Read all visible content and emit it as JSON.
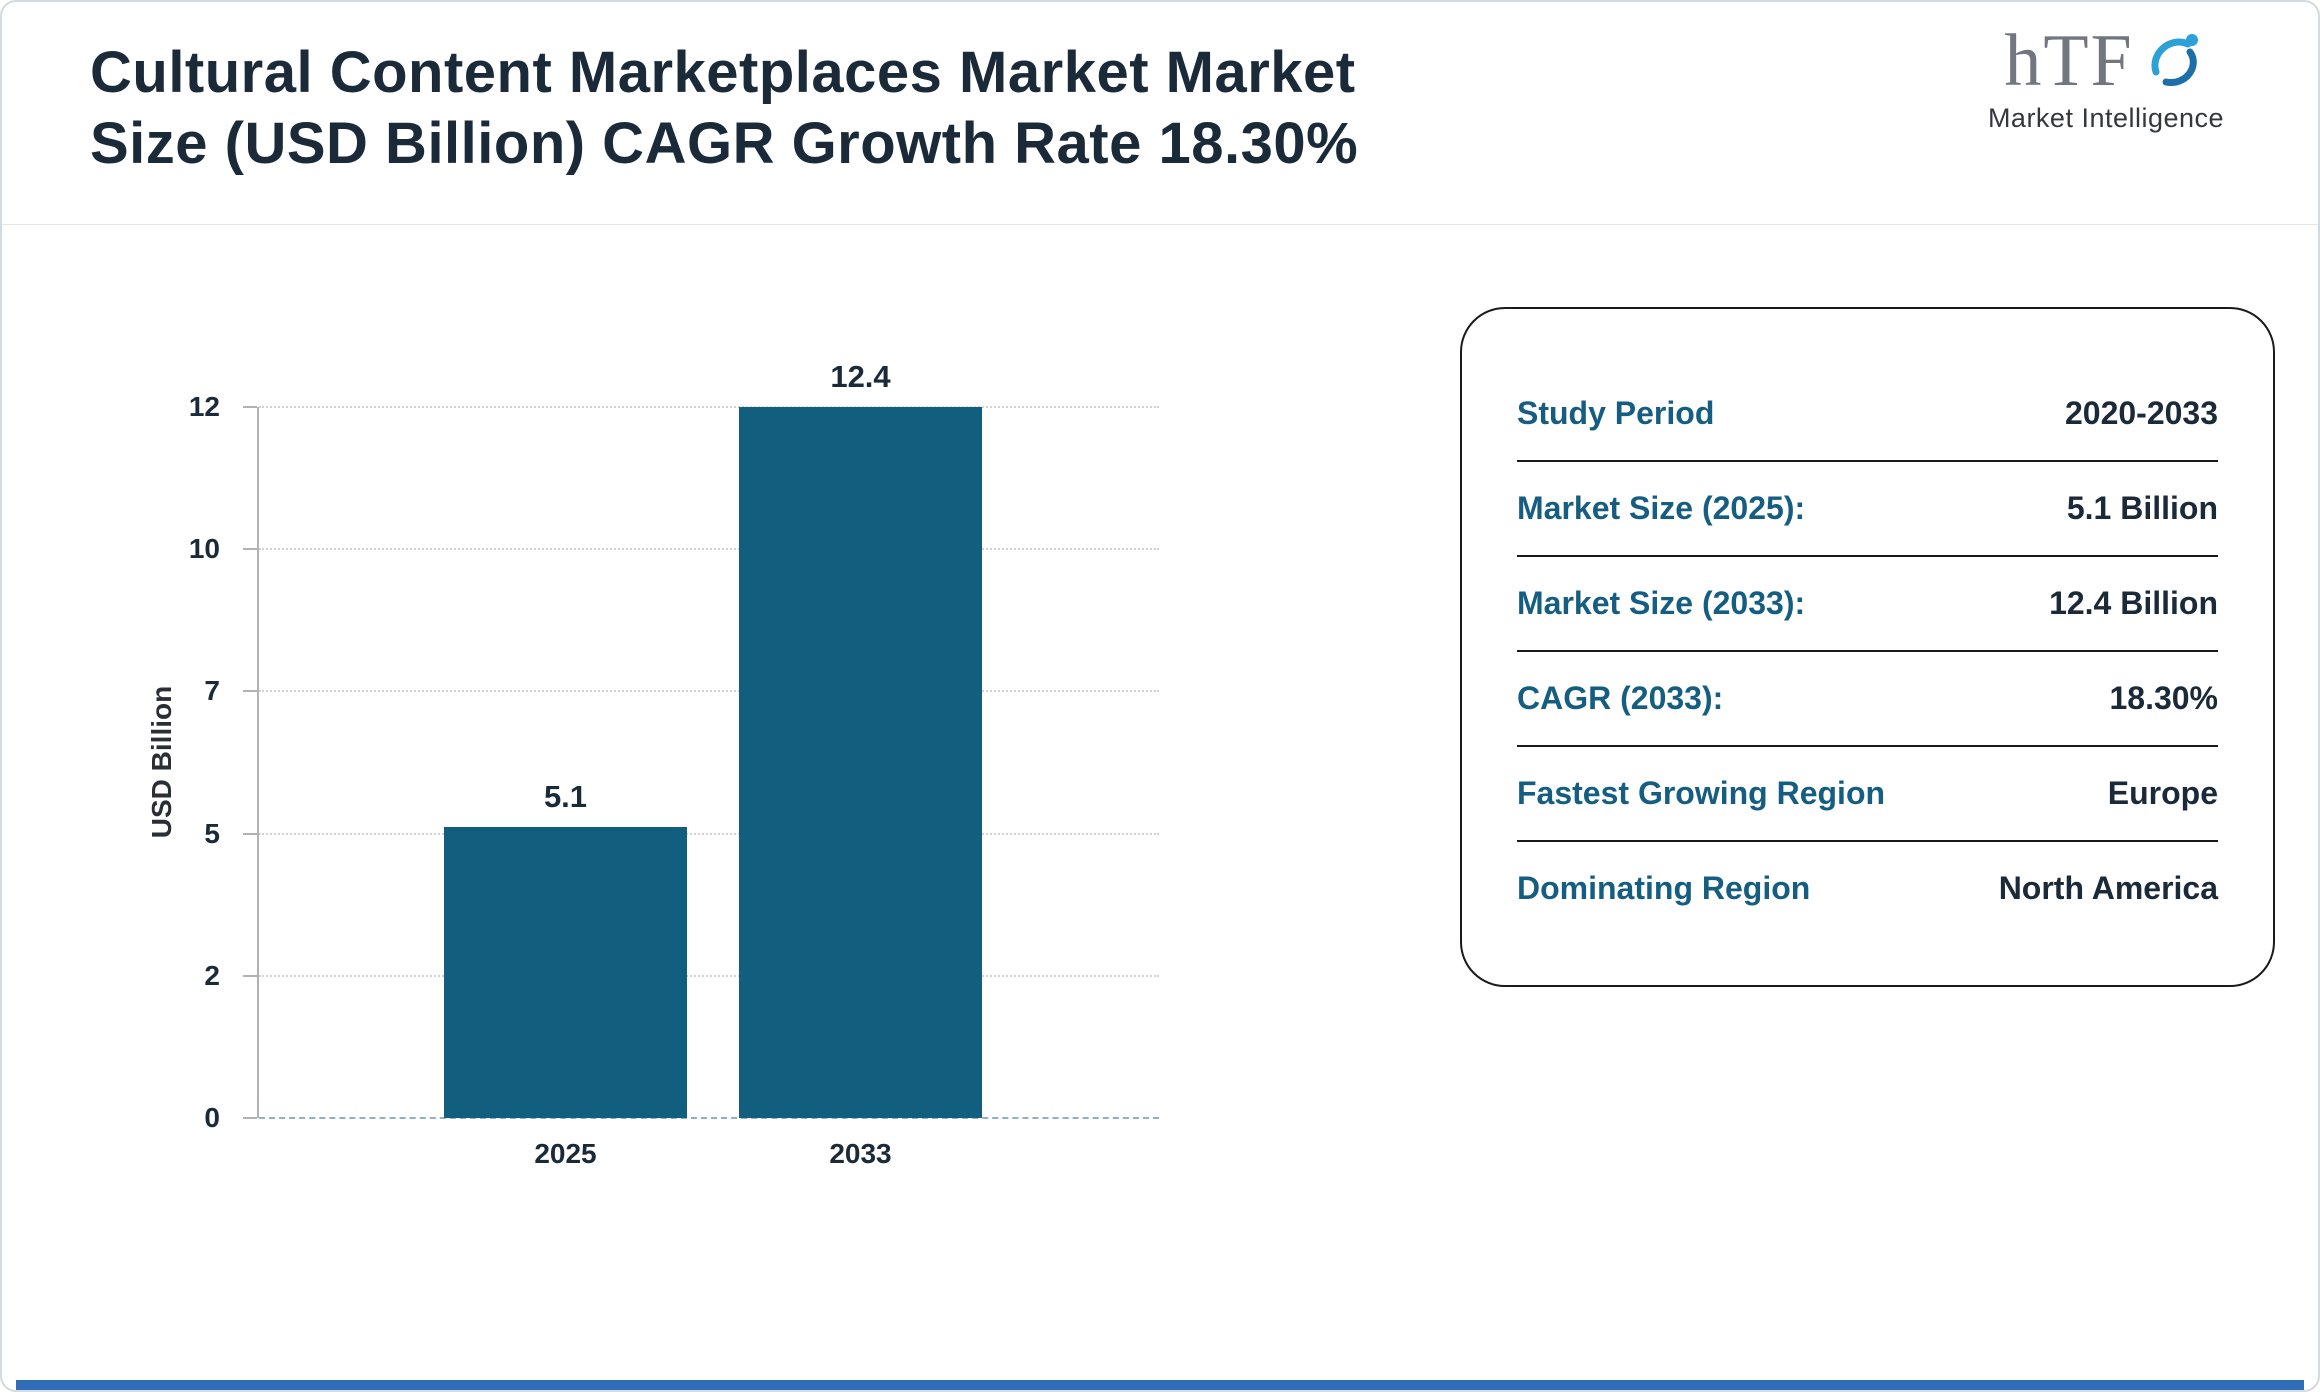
{
  "page": {
    "title_line1": "Cultural Content Marketplaces Market Market",
    "title_line2": "Size (USD Billion) CAGR Growth Rate 18.30%"
  },
  "logo": {
    "text": "hTF",
    "subtext": "Market Intelligence"
  },
  "chart_data": {
    "type": "bar",
    "categories": [
      "2025",
      "2033"
    ],
    "values": [
      5.1,
      12.4
    ],
    "value_labels": [
      "5.1",
      "12.4"
    ],
    "title": "Cultural Content Marketplaces Market Market Size (USD Billion) CAGR Growth Rate 18.30%",
    "xlabel": "",
    "ylabel": "USD Billion",
    "yticks": [
      0,
      2,
      5,
      7,
      10,
      12
    ],
    "ylim": [
      0,
      12
    ],
    "grid": true,
    "legend": "none"
  },
  "info_card": {
    "rows": [
      {
        "label": "Study Period",
        "value": "2020-2033"
      },
      {
        "label": "Market Size (2025):",
        "value": "5.1 Billion"
      },
      {
        "label": "Market Size (2033):",
        "value": "12.4 Billion"
      },
      {
        "label": "CAGR (2033):",
        "value": "18.30%"
      },
      {
        "label": "Fastest Growing Region",
        "value": "Europe"
      },
      {
        "label": "Dominating Region",
        "value": "North America"
      }
    ]
  },
  "colors": {
    "bar_color": "#115e7e",
    "text_dark": "#1b2a38",
    "label_teal": "#155e82",
    "grid_color": "#d2d2d2",
    "baseline_color": "#8fb0c9",
    "accent_blue": "#2f6db8",
    "logo_blue": "#2ea0d8"
  }
}
